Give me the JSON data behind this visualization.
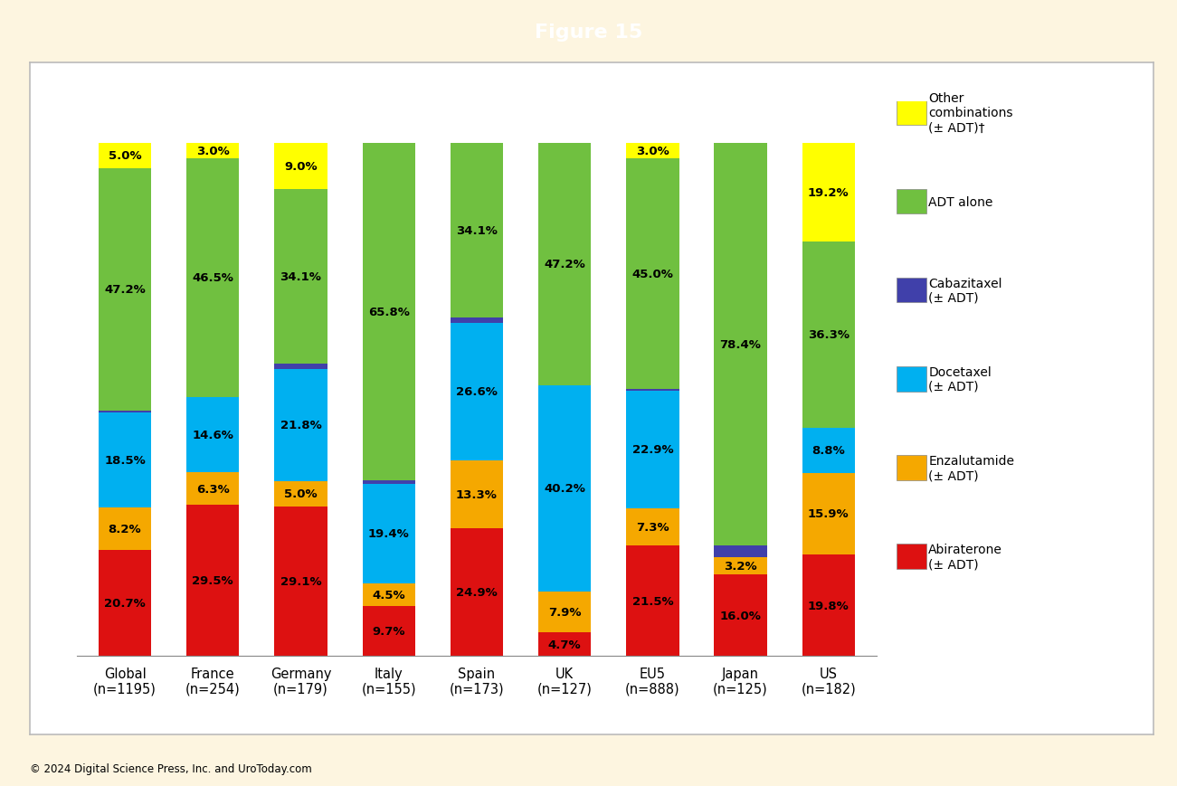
{
  "title": "Figure 15",
  "title_bg_color": "#1a7a9a",
  "title_text_color": "white",
  "bg_color": "#fdf5e0",
  "chart_bg_color": "white",
  "footer": "© 2024 Digital Science Press, Inc. and UroToday.com",
  "categories": [
    "Global\n(n=1195)",
    "France\n(n=254)",
    "Germany\n(n=179)",
    "Italy\n(n=155)",
    "Spain\n(n=173)",
    "UK\n(n=127)",
    "EU5\n(n=888)",
    "Japan\n(n=125)",
    "US\n(n=182)"
  ],
  "series": [
    {
      "name": "Abiraterone\n(± ADT)",
      "color": "#dd1111",
      "values": [
        20.7,
        29.5,
        29.1,
        9.7,
        24.9,
        4.7,
        21.5,
        16.0,
        19.8
      ]
    },
    {
      "name": "Enzalutamide\n(± ADT)",
      "color": "#f5a800",
      "values": [
        8.2,
        6.3,
        5.0,
        4.5,
        13.3,
        7.9,
        7.3,
        3.2,
        15.9
      ]
    },
    {
      "name": "Docetaxel\n(± ADT)",
      "color": "#00b0f0",
      "values": [
        18.5,
        14.6,
        21.8,
        19.4,
        26.6,
        40.2,
        22.9,
        0.0,
        8.8
      ]
    },
    {
      "name": "Cabazitaxel\n(± ADT)",
      "color": "#4040aa",
      "values": [
        0.4,
        0.1,
        1.0,
        0.6,
        1.1,
        0.0,
        0.3,
        2.4,
        0.0
      ]
    },
    {
      "name": "ADT alone",
      "color": "#70c040",
      "values": [
        47.2,
        46.5,
        34.1,
        65.8,
        34.1,
        47.2,
        45.0,
        78.4,
        36.3
      ]
    },
    {
      "name": "Other\ncombinations\n(± ADT)†",
      "color": "#ffff00",
      "values": [
        5.0,
        3.0,
        9.0,
        0.0,
        0.0,
        0.0,
        3.0,
        0.0,
        19.2
      ]
    }
  ],
  "bar_width": 0.6,
  "ylim": [
    0,
    108
  ],
  "label_fontsize": 9.5,
  "legend_fontsize": 10,
  "tick_fontsize": 10.5,
  "title_fontsize": 16,
  "min_label_pct": 3.0
}
